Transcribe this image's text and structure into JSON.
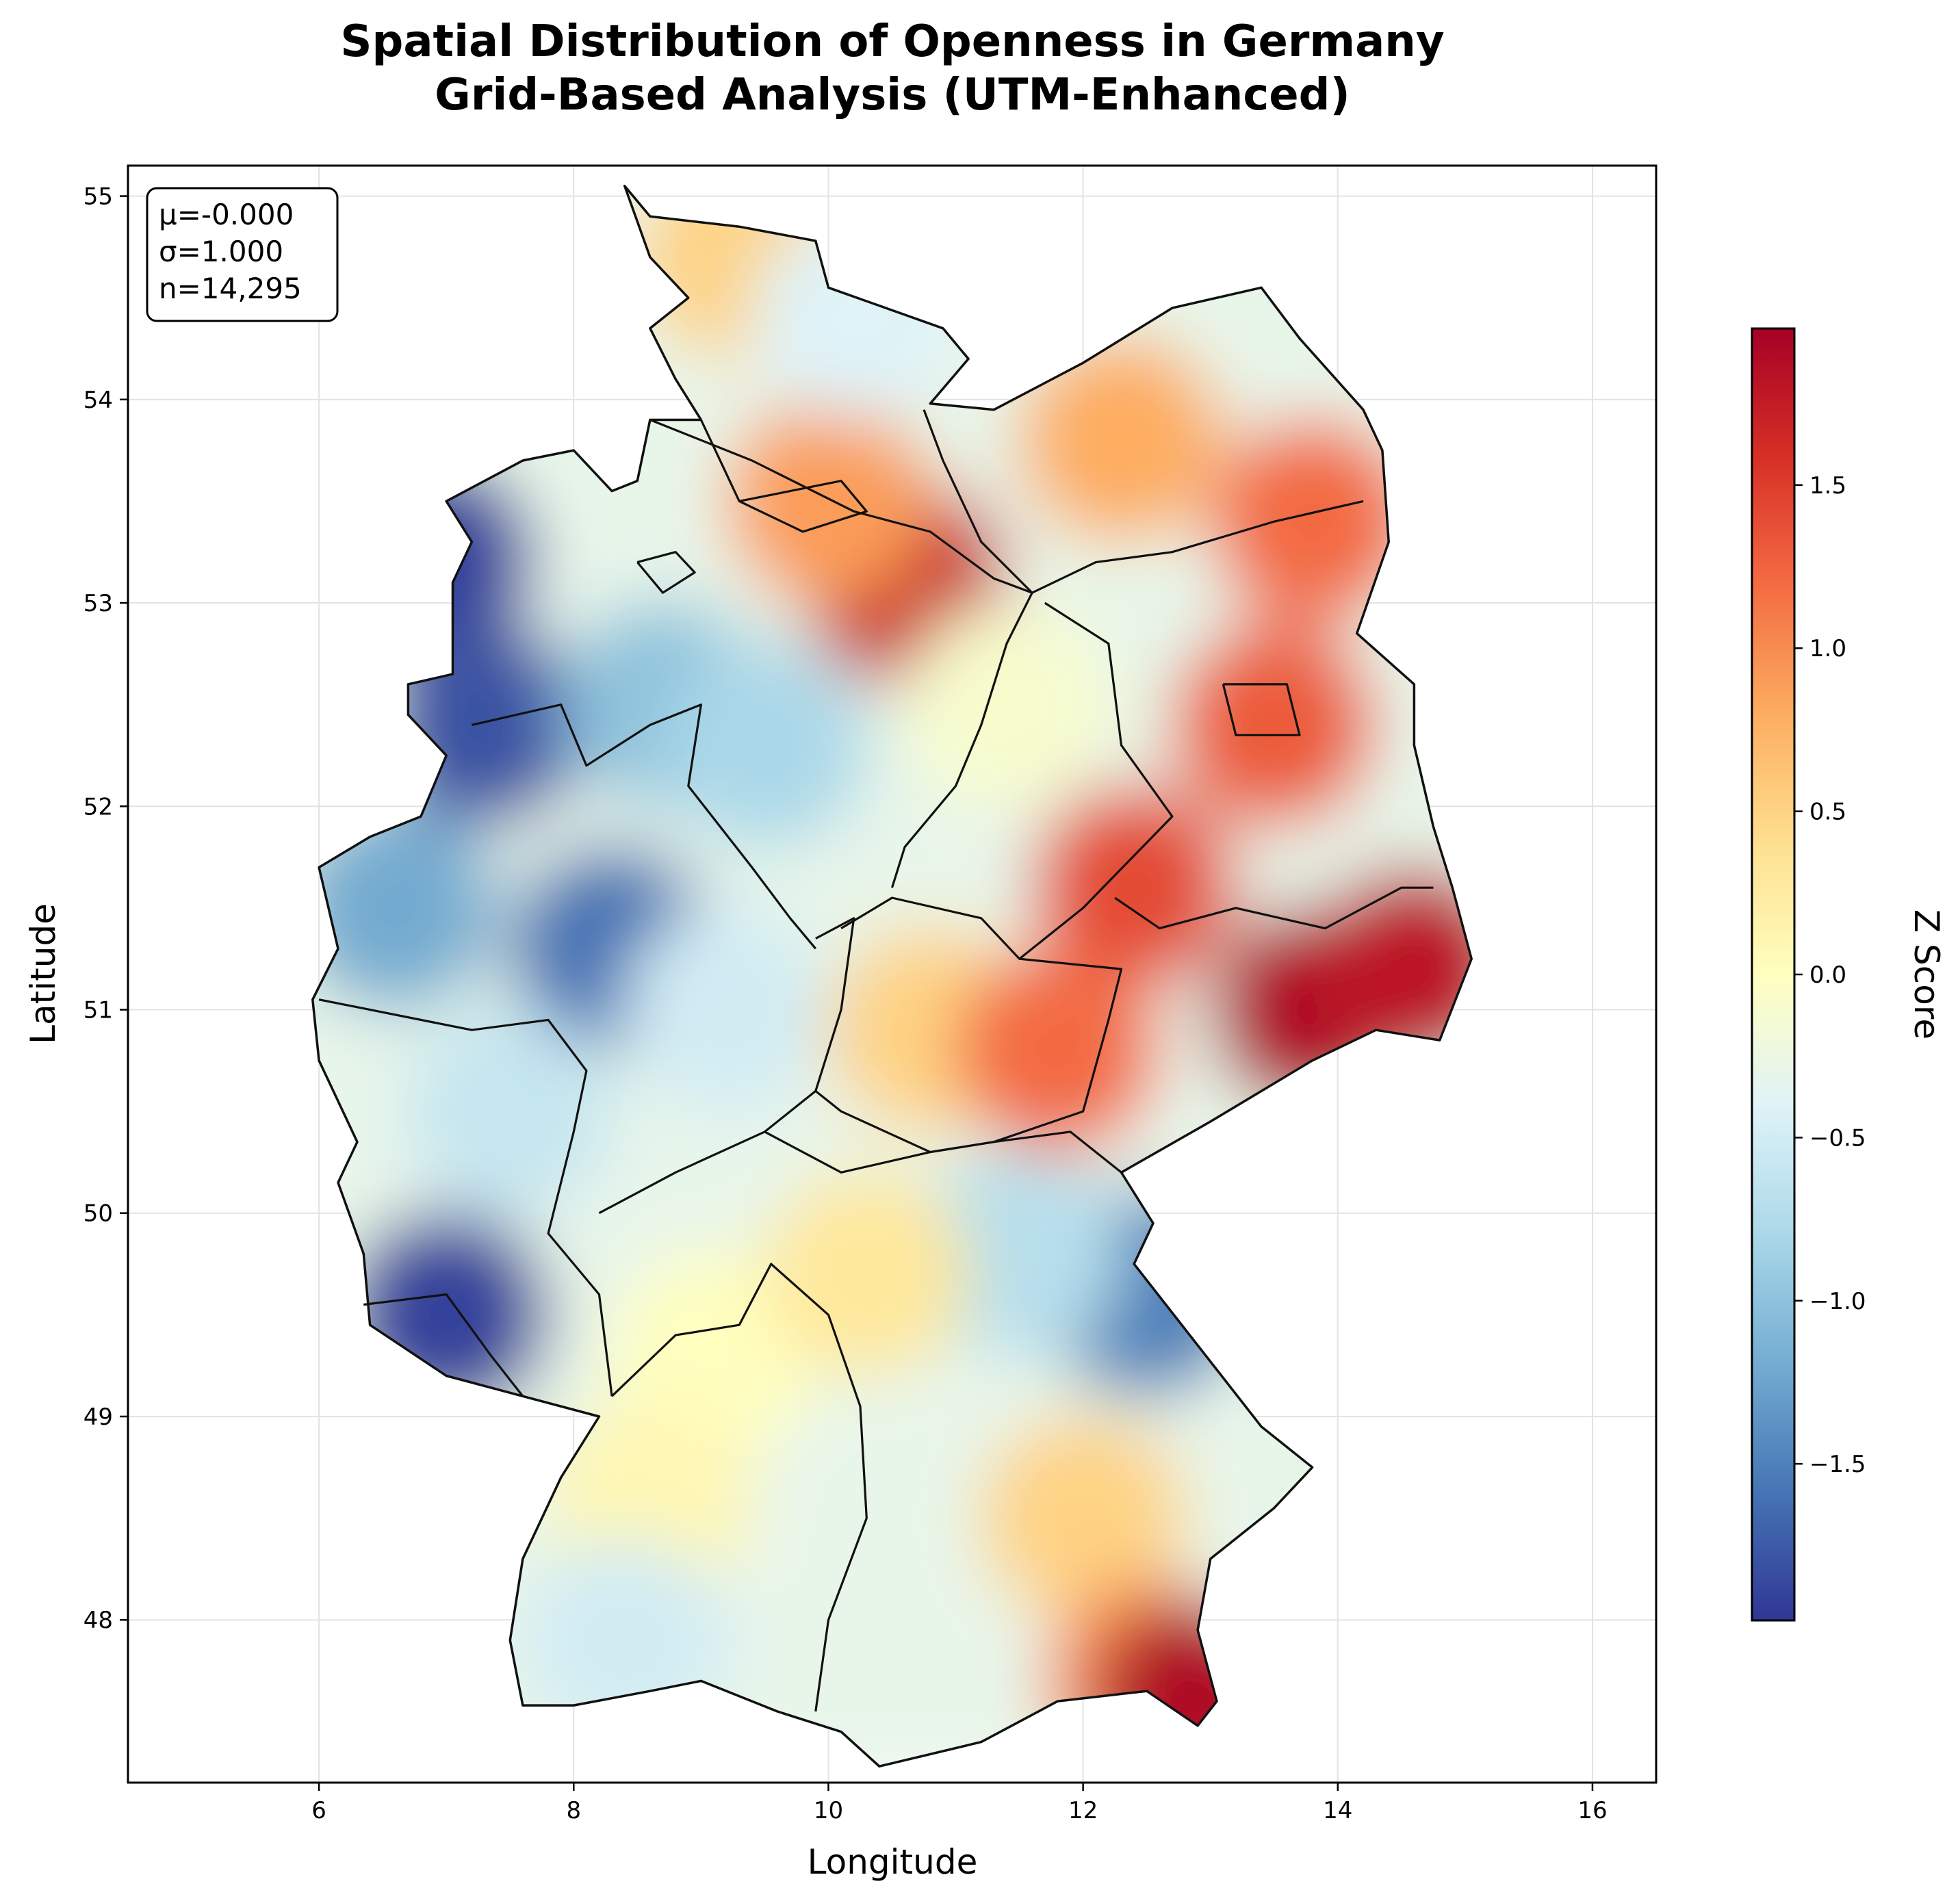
{
  "chart_data": {
    "type": "heatmap",
    "title": "Spatial Distribution of Openness in Germany",
    "subtitle": "Grid-Based Analysis (UTM-Enhanced)",
    "xlabel": "Longitude",
    "ylabel": "Latitude",
    "xlim": [
      4.5,
      16.5
    ],
    "ylim": [
      47.2,
      55.15
    ],
    "xticks": [
      6,
      8,
      10,
      12,
      14,
      16
    ],
    "yticks": [
      48,
      49,
      50,
      51,
      52,
      53,
      54,
      55
    ],
    "grid": true,
    "colorbar": {
      "label": "Z Score",
      "colormap": "RdYlBu_r",
      "range": [
        -1.98,
        1.98
      ],
      "ticks": [
        -1.5,
        -1.0,
        -0.5,
        0.0,
        0.5,
        1.0,
        1.5
      ],
      "tick_labels": [
        "−1.5",
        "−1.0",
        "−0.5",
        "0.0",
        "0.5",
        "1.0",
        "1.5"
      ]
    },
    "stats": {
      "mean": "μ=-0.000",
      "sd": "σ=1.000",
      "n": "n=14,295"
    },
    "regional_values": [
      {
        "lon": 6.9,
        "lat": 53.2,
        "z": -1.9
      },
      {
        "lon": 7.3,
        "lat": 52.4,
        "z": -1.8
      },
      {
        "lon": 8.3,
        "lat": 51.3,
        "z": -1.6
      },
      {
        "lon": 7.0,
        "lat": 49.5,
        "z": -1.9
      },
      {
        "lon": 6.6,
        "lat": 51.5,
        "z": -1.2
      },
      {
        "lon": 7.5,
        "lat": 50.5,
        "z": -0.6
      },
      {
        "lon": 8.7,
        "lat": 52.5,
        "z": -1.0
      },
      {
        "lon": 9.5,
        "lat": 52.3,
        "z": -0.8
      },
      {
        "lon": 9.2,
        "lat": 51.0,
        "z": -0.5
      },
      {
        "lon": 9.1,
        "lat": 49.3,
        "z": 0.0
      },
      {
        "lon": 8.6,
        "lat": 48.6,
        "z": 0.1
      },
      {
        "lon": 8.4,
        "lat": 47.9,
        "z": -0.5
      },
      {
        "lon": 12.5,
        "lat": 49.6,
        "z": -1.5
      },
      {
        "lon": 11.5,
        "lat": 49.8,
        "z": -0.7
      },
      {
        "lon": 12.0,
        "lat": 48.5,
        "z": 0.5
      },
      {
        "lon": 12.5,
        "lat": 47.7,
        "z": 1.0
      },
      {
        "lon": 12.9,
        "lat": 47.6,
        "z": 1.9
      },
      {
        "lon": 10.6,
        "lat": 53.1,
        "z": 1.7
      },
      {
        "lon": 10.0,
        "lat": 53.5,
        "z": 0.9
      },
      {
        "lon": 9.3,
        "lat": 54.7,
        "z": 0.5
      },
      {
        "lon": 10.2,
        "lat": 54.4,
        "z": -0.4
      },
      {
        "lon": 12.3,
        "lat": 53.8,
        "z": 0.8
      },
      {
        "lon": 13.8,
        "lat": 53.4,
        "z": 1.2
      },
      {
        "lon": 13.5,
        "lat": 52.4,
        "z": 1.3
      },
      {
        "lon": 11.4,
        "lat": 52.5,
        "z": -0.1
      },
      {
        "lon": 12.4,
        "lat": 51.6,
        "z": 1.4
      },
      {
        "lon": 13.8,
        "lat": 51.0,
        "z": 1.9
      },
      {
        "lon": 10.8,
        "lat": 50.9,
        "z": 0.5
      },
      {
        "lon": 11.8,
        "lat": 50.8,
        "z": 1.2
      },
      {
        "lon": 10.3,
        "lat": 49.7,
        "z": 0.3
      },
      {
        "lon": 14.6,
        "lat": 51.2,
        "z": 1.8
      }
    ]
  }
}
